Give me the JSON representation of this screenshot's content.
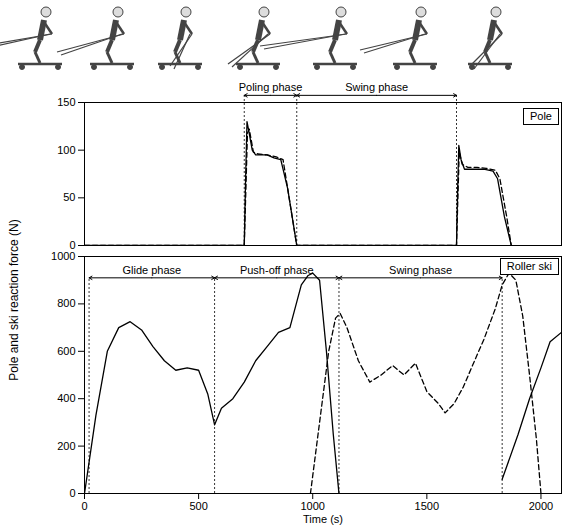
{
  "ylabel": "Pole and ski reaction force (N)",
  "chart_data": [
    {
      "type": "line",
      "panel_label": "Pole",
      "tick_labels": "y",
      "xlim": [
        0,
        2090
      ],
      "ylim": [
        0,
        150
      ],
      "yticks": [
        0,
        50,
        100,
        150
      ],
      "phases": [
        {
          "label": "Poling phase",
          "start": 700,
          "end": 930
        },
        {
          "label": "Swing phase",
          "start": 930,
          "end": 1630
        }
      ],
      "series": [
        {
          "line_style": "solid",
          "color": "#000000",
          "x": [
            0,
            700,
            705,
            712,
            720,
            735,
            750,
            780,
            800,
            830,
            860,
            890,
            910,
            930,
            1630,
            1635,
            1640,
            1650,
            1665,
            1700,
            1750,
            1790,
            1810,
            1840,
            1870
          ],
          "values": [
            0,
            0,
            60,
            130,
            120,
            100,
            95,
            95,
            95,
            92,
            90,
            60,
            30,
            0,
            0,
            60,
            105,
            90,
            80,
            80,
            80,
            78,
            70,
            30,
            0
          ]
        },
        {
          "line_style": "dashed",
          "color": "#000000",
          "x": [
            0,
            700,
            706,
            714,
            722,
            740,
            760,
            800,
            840,
            870,
            900,
            930,
            1630,
            1636,
            1642,
            1655,
            1680,
            1720,
            1760,
            1800,
            1820,
            1850,
            1870
          ],
          "values": [
            0,
            0,
            50,
            118,
            122,
            98,
            96,
            95,
            93,
            90,
            45,
            0,
            0,
            50,
            98,
            85,
            82,
            82,
            81,
            79,
            70,
            30,
            0
          ]
        }
      ]
    },
    {
      "type": "line",
      "panel_label": "Roller ski",
      "xlabel": "Time (s)",
      "xlim": [
        0,
        2090
      ],
      "ylim": [
        0,
        1000
      ],
      "xticks": [
        0,
        500,
        1000,
        1500,
        2000
      ],
      "yticks": [
        0,
        200,
        400,
        600,
        800,
        1000
      ],
      "phases": [
        {
          "label": "Glide phase",
          "start": 20,
          "end": 570
        },
        {
          "label": "Push-off phase",
          "start": 570,
          "end": 1115
        },
        {
          "label": "Swing phase",
          "start": 1115,
          "end": 1830
        }
      ],
      "series": [
        {
          "line_style": "solid",
          "color": "#000000",
          "x": [
            0,
            50,
            100,
            150,
            200,
            250,
            300,
            350,
            400,
            450,
            500,
            540,
            570,
            600,
            650,
            700,
            750,
            800,
            850,
            900,
            950,
            980,
            1000,
            1030,
            1060,
            1090,
            1115,
            1500,
            1830,
            1900,
            1950,
            2000,
            2040,
            2090
          ],
          "values": [
            0,
            330,
            600,
            700,
            725,
            690,
            620,
            560,
            520,
            530,
            520,
            420,
            290,
            360,
            400,
            470,
            560,
            620,
            680,
            700,
            880,
            920,
            930,
            900,
            600,
            250,
            0,
            null,
            60,
            250,
            400,
            530,
            640,
            680
          ]
        },
        {
          "line_style": "dashed",
          "color": "#000000",
          "x": [
            990,
            1030,
            1070,
            1100,
            1120,
            1150,
            1200,
            1250,
            1300,
            1350,
            1400,
            1450,
            1500,
            1550,
            1580,
            1620,
            1660,
            1700,
            1750,
            1800,
            1830,
            1860,
            1890,
            1920,
            1950,
            1980,
            2000
          ],
          "values": [
            0,
            300,
            600,
            740,
            760,
            700,
            560,
            470,
            500,
            540,
            500,
            550,
            430,
            380,
            340,
            380,
            450,
            540,
            650,
            780,
            880,
            930,
            900,
            750,
            500,
            230,
            0
          ]
        }
      ]
    }
  ]
}
